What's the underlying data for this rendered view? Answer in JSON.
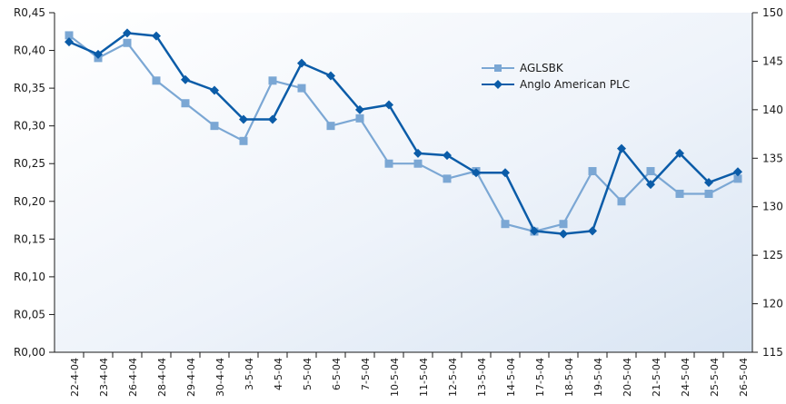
{
  "chart_data": {
    "type": "line",
    "title": "",
    "xlabel": "",
    "ylabel": "",
    "categories": [
      "22-4-04",
      "23-4-04",
      "26-4-04",
      "28-4-04",
      "29-4-04",
      "30-4-04",
      "3-5-04",
      "4-5-04",
      "5-5-04",
      "6-5-04",
      "7-5-04",
      "10-5-04",
      "11-5-04",
      "12-5-04",
      "13-5-04",
      "14-5-04",
      "17-5-04",
      "18-5-04",
      "19-5-04",
      "20-5-04",
      "21-5-04",
      "24-5-04",
      "25-5-04",
      "26-5-04"
    ],
    "y_left": {
      "min": 0,
      "max": 0.45,
      "ticks": [
        0,
        0.05,
        0.1,
        0.15,
        0.2,
        0.25,
        0.3,
        0.35,
        0.4,
        0.45
      ],
      "tick_labels": [
        "R0,00",
        "R0,05",
        "R0,10",
        "R0,15",
        "R0,20",
        "R0,25",
        "R0,30",
        "R0,35",
        "R0,40",
        "R0,45"
      ]
    },
    "y_right": {
      "min": 115,
      "max": 150,
      "ticks": [
        115,
        120,
        125,
        130,
        135,
        140,
        145,
        150
      ],
      "tick_labels": [
        "115",
        "120",
        "125",
        "130",
        "135",
        "140",
        "145",
        "150"
      ]
    },
    "legend_position": "top-right",
    "grid": false,
    "series": [
      {
        "name": "AGLSBK",
        "axis": "left",
        "color": "#7ba7d4",
        "marker": "square",
        "values": [
          0.42,
          0.39,
          0.41,
          0.36,
          0.33,
          0.3,
          0.28,
          0.36,
          0.35,
          0.3,
          0.31,
          0.25,
          0.25,
          0.23,
          0.24,
          0.17,
          0.16,
          0.17,
          0.24,
          0.2,
          0.24,
          0.21,
          0.21,
          0.23
        ]
      },
      {
        "name": "Anglo American PLC",
        "axis": "right",
        "color": "#0b5ca8",
        "marker": "diamond",
        "values": [
          147.0,
          145.7,
          147.9,
          147.6,
          143.1,
          142.0,
          139.0,
          139.0,
          144.8,
          143.5,
          140.0,
          140.5,
          135.5,
          135.3,
          133.5,
          133.5,
          127.5,
          127.2,
          127.5,
          136.0,
          132.3,
          135.5,
          132.5,
          133.6
        ]
      }
    ]
  }
}
